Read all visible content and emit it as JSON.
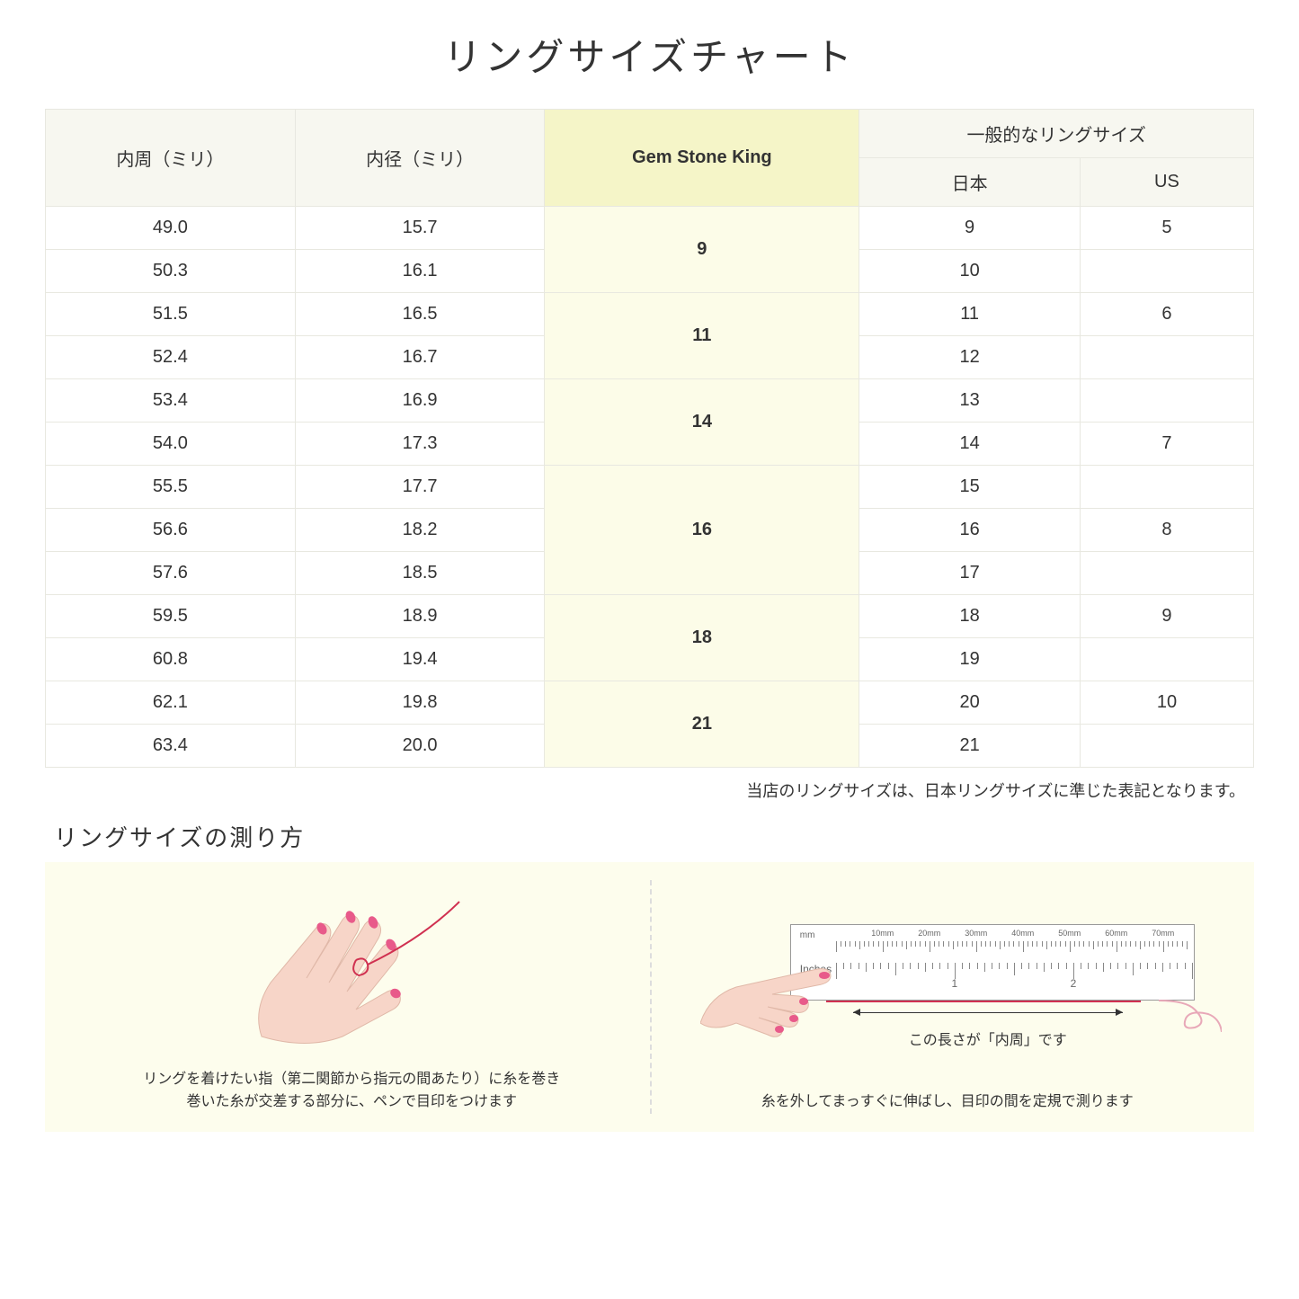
{
  "title": "リングサイズチャート",
  "table": {
    "headers": {
      "circumference": "内周（ミリ）",
      "diameter": "内径（ミリ）",
      "gsk": "Gem Stone King",
      "general": "一般的なリングサイズ",
      "japan": "日本",
      "us": "US"
    },
    "groups": [
      {
        "gsk": "9",
        "rows": [
          {
            "circ": "49.0",
            "diam": "15.7",
            "jp": "9",
            "us": "5"
          },
          {
            "circ": "50.3",
            "diam": "16.1",
            "jp": "10",
            "us": ""
          }
        ]
      },
      {
        "gsk": "11",
        "rows": [
          {
            "circ": "51.5",
            "diam": "16.5",
            "jp": "11",
            "us": "6"
          },
          {
            "circ": "52.4",
            "diam": "16.7",
            "jp": "12",
            "us": ""
          }
        ]
      },
      {
        "gsk": "14",
        "rows": [
          {
            "circ": "53.4",
            "diam": "16.9",
            "jp": "13",
            "us": ""
          },
          {
            "circ": "54.0",
            "diam": "17.3",
            "jp": "14",
            "us": "7"
          }
        ]
      },
      {
        "gsk": "16",
        "rows": [
          {
            "circ": "55.5",
            "diam": "17.7",
            "jp": "15",
            "us": ""
          },
          {
            "circ": "56.6",
            "diam": "18.2",
            "jp": "16",
            "us": "8"
          },
          {
            "circ": "57.6",
            "diam": "18.5",
            "jp": "17",
            "us": ""
          }
        ]
      },
      {
        "gsk": "18",
        "rows": [
          {
            "circ": "59.5",
            "diam": "18.9",
            "jp": "18",
            "us": "9"
          },
          {
            "circ": "60.8",
            "diam": "19.4",
            "jp": "19",
            "us": ""
          }
        ]
      },
      {
        "gsk": "21",
        "rows": [
          {
            "circ": "62.1",
            "diam": "19.8",
            "jp": "20",
            "us": "10"
          },
          {
            "circ": "63.4",
            "diam": "20.0",
            "jp": "21",
            "us": ""
          }
        ]
      }
    ]
  },
  "note": "当店のリングサイズは、日本リングサイズに準じた表記となります。",
  "subtitle": "リングサイズの測り方",
  "step1": {
    "line1": "リングを着けたい指（第二関節から指元の間あたり）に糸を巻き",
    "line2": "巻いた糸が交差する部分に、ペンで目印をつけます"
  },
  "step2": {
    "measure_label": "この長さが「内周」です",
    "text": "糸を外してまっすぐに伸ばし、目印の間を定規で測ります"
  },
  "ruler": {
    "mm_unit": "mm",
    "mm_labels": [
      "10mm",
      "20mm",
      "30mm",
      "40mm",
      "50mm",
      "60mm",
      "70mm"
    ],
    "inches_unit": "Inches",
    "inch_labels": [
      "1",
      "2"
    ]
  },
  "colors": {
    "header_bg": "#f7f7f0",
    "gsk_bg": "#f5f5c8",
    "gsk_cell_bg": "#fcfce8",
    "border": "#e8e8e0",
    "instructions_bg": "#fdfded",
    "skin": "#f7d5c8",
    "nail": "#e85a8a",
    "thread": "#d03050"
  }
}
